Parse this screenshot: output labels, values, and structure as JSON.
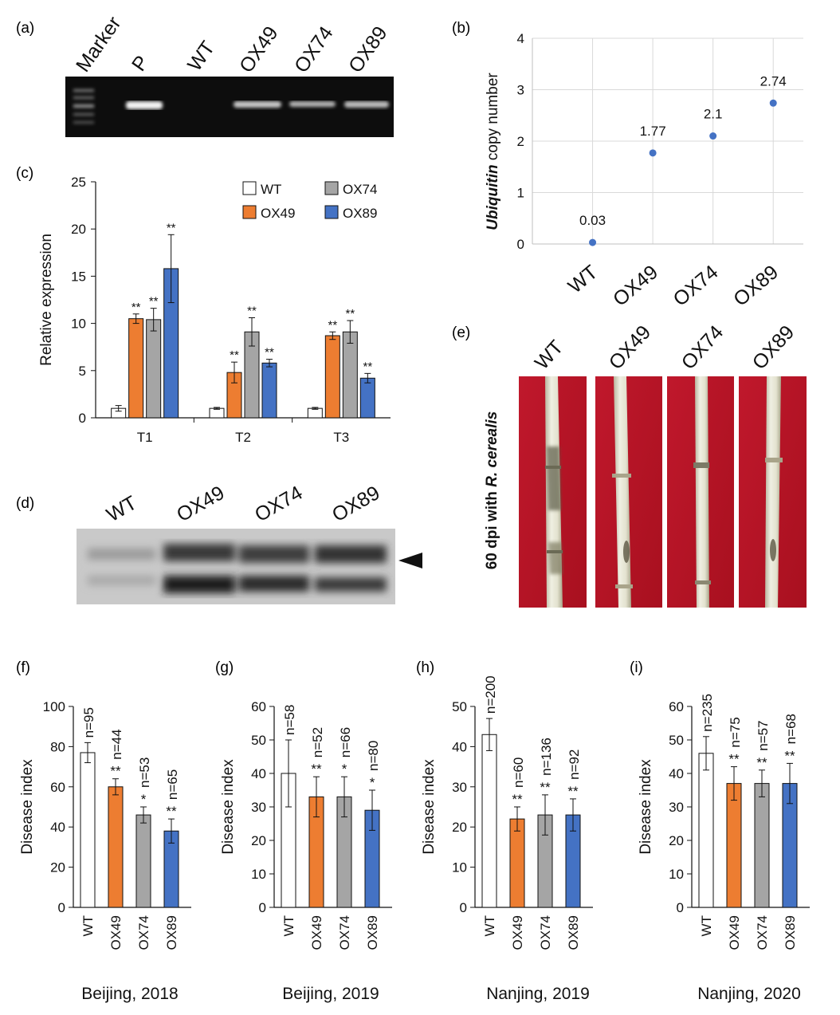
{
  "panels": {
    "a": {
      "label": "(a)",
      "lanes": [
        "Marker",
        "P",
        "WT",
        "OX49",
        "OX74",
        "OX89"
      ]
    },
    "b": {
      "label": "(b)",
      "ylabel_italic": "Ubiquitin",
      "ylabel_rest": " copy number"
    },
    "c": {
      "label": "(c)"
    },
    "d": {
      "label": "(d)",
      "lanes": [
        "WT",
        "OX49",
        "OX74",
        "OX89"
      ]
    },
    "e": {
      "label": "(e)",
      "lanes": [
        "WT",
        "OX49",
        "OX74",
        "OX89"
      ],
      "side_label_prefix": "60 dpi with ",
      "side_label_italic": "R. cerealis"
    },
    "f": {
      "label": "(f)",
      "site": "Beijing, 2018"
    },
    "g": {
      "label": "(g)",
      "site": "Beijing, 2019"
    },
    "h": {
      "label": "(h)",
      "site": "Nanjing, 2019"
    },
    "i": {
      "label": "(i)",
      "site": "Nanjing, 2020"
    }
  },
  "colors": {
    "WT": "#ffffff",
    "OX49": "#ed7d31",
    "OX74": "#a5a5a5",
    "OX89": "#4472c4",
    "scatter": "#4472c4",
    "gel_bg": "#111111"
  },
  "chart_data": [
    {
      "id": "b",
      "type": "scatter",
      "categories": [
        "WT",
        "OX49",
        "OX74",
        "OX89"
      ],
      "values": [
        0.03,
        1.77,
        2.1,
        2.74
      ],
      "data_labels": [
        "0.03",
        "1.77",
        "2.1",
        "2.74"
      ],
      "ylabel": "Ubiquitin copy number",
      "ylim": [
        0,
        4
      ],
      "yticks": [
        0,
        1,
        2,
        3,
        4
      ],
      "grid": true
    },
    {
      "id": "c",
      "type": "bar",
      "categories": [
        "T1",
        "T2",
        "T3"
      ],
      "ylabel": "Relative expression",
      "ylim": [
        0,
        25
      ],
      "yticks": [
        0,
        5,
        10,
        15,
        20,
        25
      ],
      "legend": "top-right",
      "series": [
        {
          "name": "WT",
          "values": [
            1.0,
            1.0,
            1.0
          ],
          "errors": [
            0.3,
            0.1,
            0.1
          ],
          "sig": [
            "",
            "",
            ""
          ]
        },
        {
          "name": "OX49",
          "values": [
            10.5,
            4.8,
            8.7
          ],
          "errors": [
            0.5,
            1.1,
            0.4
          ],
          "sig": [
            "**",
            "**",
            "**"
          ]
        },
        {
          "name": "OX74",
          "values": [
            10.4,
            9.1,
            9.1
          ],
          "errors": [
            1.2,
            1.5,
            1.2
          ],
          "sig": [
            "**",
            "**",
            "**"
          ]
        },
        {
          "name": "OX89",
          "values": [
            15.8,
            5.8,
            4.2
          ],
          "errors": [
            3.6,
            0.4,
            0.5
          ],
          "sig": [
            "**",
            "**",
            "**"
          ]
        }
      ]
    },
    {
      "id": "f",
      "type": "bar",
      "categories": [
        "WT",
        "OX49",
        "OX74",
        "OX89"
      ],
      "values": [
        77,
        60,
        46,
        38
      ],
      "errors": [
        5,
        4,
        4,
        6
      ],
      "sig": [
        "",
        "**",
        "*",
        "**"
      ],
      "n_labels": [
        "n=95",
        "n=44",
        "n=53",
        "n=65"
      ],
      "ylabel": "Disease index",
      "ylim": [
        0,
        100
      ],
      "yticks": [
        0,
        20,
        40,
        60,
        80,
        100
      ],
      "xlabel": "Beijing, 2018"
    },
    {
      "id": "g",
      "type": "bar",
      "categories": [
        "WT",
        "OX49",
        "OX74",
        "OX89"
      ],
      "values": [
        40,
        33,
        33,
        29
      ],
      "errors": [
        10,
        6,
        6,
        6
      ],
      "sig": [
        "",
        "**",
        "*",
        "*"
      ],
      "n_labels": [
        "n=58",
        "n=52",
        "n=66",
        "n=80"
      ],
      "ylabel": "Disease index",
      "ylim": [
        0,
        60
      ],
      "yticks": [
        0,
        10,
        20,
        30,
        40,
        50,
        60
      ],
      "xlabel": "Beijing, 2019"
    },
    {
      "id": "h",
      "type": "bar",
      "categories": [
        "WT",
        "OX49",
        "OX74",
        "OX89"
      ],
      "values": [
        43,
        22,
        23,
        23
      ],
      "errors": [
        4,
        3,
        5,
        4
      ],
      "sig": [
        "",
        "**",
        "**",
        "**"
      ],
      "n_labels": [
        "n=200",
        "n=60",
        "n=136",
        "n=92"
      ],
      "ylabel": "Disease index",
      "ylim": [
        0,
        50
      ],
      "yticks": [
        0,
        10,
        20,
        30,
        40,
        50
      ],
      "xlabel": "Nanjing, 2019"
    },
    {
      "id": "i",
      "type": "bar",
      "categories": [
        "WT",
        "OX49",
        "OX74",
        "OX89"
      ],
      "values": [
        46,
        37,
        37,
        37
      ],
      "errors": [
        5,
        5,
        4,
        6
      ],
      "sig": [
        "",
        "**",
        "**",
        "**"
      ],
      "n_labels": [
        "n=235",
        "n=75",
        "n=57",
        "n=68"
      ],
      "ylabel": "Disease index",
      "ylim": [
        0,
        60
      ],
      "yticks": [
        0,
        10,
        20,
        30,
        40,
        50,
        60
      ],
      "xlabel": "Nanjing, 2020"
    }
  ]
}
